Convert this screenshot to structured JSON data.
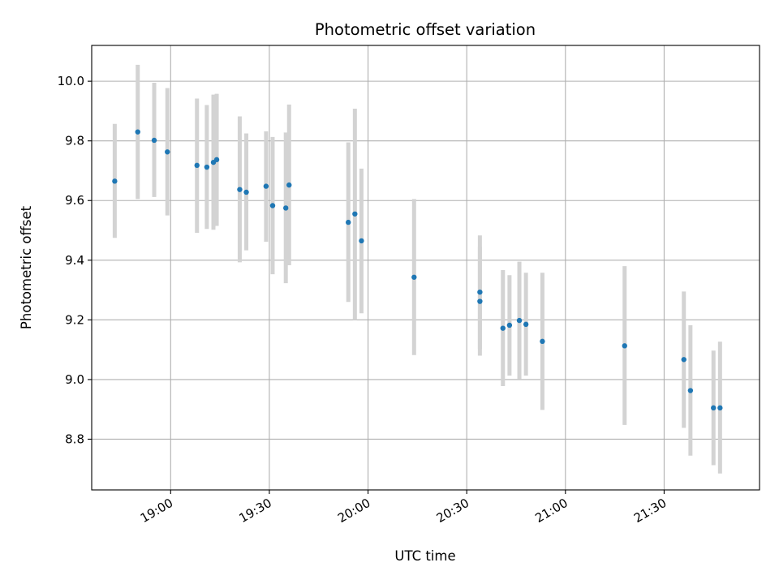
{
  "chart_data": {
    "type": "scatter",
    "title": "Photometric offset variation",
    "xlabel": "UTC time",
    "ylabel": "Photometric offset",
    "x_tick_labels": [
      "19:00",
      "19:30",
      "20:00",
      "20:30",
      "21:00",
      "21:30"
    ],
    "y_tick_labels": [
      "8.8",
      "9.0",
      "9.2",
      "9.4",
      "9.6",
      "9.8",
      "10.0"
    ],
    "xlim": [
      "18:36",
      "21:59"
    ],
    "ylim": [
      8.63,
      10.12
    ],
    "grid": true,
    "colors": {
      "point": "#1f77b4",
      "errorbar": "#d3d3d3",
      "grid": "#b0b0b0"
    },
    "series": [
      {
        "points": [
          {
            "x": "18:43",
            "y": 9.665,
            "low": 9.475,
            "high": 9.857
          },
          {
            "x": "18:50",
            "y": 9.83,
            "low": 9.605,
            "high": 10.055
          },
          {
            "x": "18:55",
            "y": 9.802,
            "low": 9.612,
            "high": 9.995
          },
          {
            "x": "18:59",
            "y": 9.763,
            "low": 9.55,
            "high": 9.977
          },
          {
            "x": "19:08",
            "y": 9.718,
            "low": 9.492,
            "high": 9.942
          },
          {
            "x": "19:11",
            "y": 9.712,
            "low": 9.505,
            "high": 9.92
          },
          {
            "x": "19:13",
            "y": 9.728,
            "low": 9.502,
            "high": 9.955
          },
          {
            "x": "19:14",
            "y": 9.737,
            "low": 9.515,
            "high": 9.958
          },
          {
            "x": "19:21",
            "y": 9.637,
            "low": 9.393,
            "high": 9.882
          },
          {
            "x": "19:23",
            "y": 9.628,
            "low": 9.433,
            "high": 9.825
          },
          {
            "x": "19:29",
            "y": 9.648,
            "low": 9.462,
            "high": 9.832
          },
          {
            "x": "19:31",
            "y": 9.583,
            "low": 9.353,
            "high": 9.813
          },
          {
            "x": "19:35",
            "y": 9.575,
            "low": 9.323,
            "high": 9.828
          },
          {
            "x": "19:36",
            "y": 9.652,
            "low": 9.383,
            "high": 9.922
          },
          {
            "x": "19:54",
            "y": 9.527,
            "low": 9.26,
            "high": 9.795
          },
          {
            "x": "19:56",
            "y": 9.555,
            "low": 9.2,
            "high": 9.908
          },
          {
            "x": "19:58",
            "y": 9.465,
            "low": 9.222,
            "high": 9.707
          },
          {
            "x": "20:14",
            "y": 9.343,
            "low": 9.082,
            "high": 9.605
          },
          {
            "x": "20:34",
            "y": 9.262,
            "low": 9.08,
            "high": 9.445
          },
          {
            "x": "20:34",
            "y": 9.293,
            "low": 9.103,
            "high": 9.483
          },
          {
            "x": "20:41",
            "y": 9.172,
            "low": 8.978,
            "high": 9.367
          },
          {
            "x": "20:43",
            "y": 9.182,
            "low": 9.013,
            "high": 9.35
          },
          {
            "x": "20:46",
            "y": 9.198,
            "low": 9.002,
            "high": 9.395
          },
          {
            "x": "20:48",
            "y": 9.185,
            "low": 9.013,
            "high": 9.358
          },
          {
            "x": "20:53",
            "y": 9.128,
            "low": 8.898,
            "high": 9.358
          },
          {
            "x": "21:18",
            "y": 9.113,
            "low": 8.848,
            "high": 9.38
          },
          {
            "x": "21:36",
            "y": 9.067,
            "low": 8.838,
            "high": 9.295
          },
          {
            "x": "21:38",
            "y": 8.963,
            "low": 8.745,
            "high": 9.182
          },
          {
            "x": "21:45",
            "y": 8.905,
            "low": 8.713,
            "high": 9.097
          },
          {
            "x": "21:47",
            "y": 8.905,
            "low": 8.685,
            "high": 9.127
          }
        ]
      }
    ]
  }
}
